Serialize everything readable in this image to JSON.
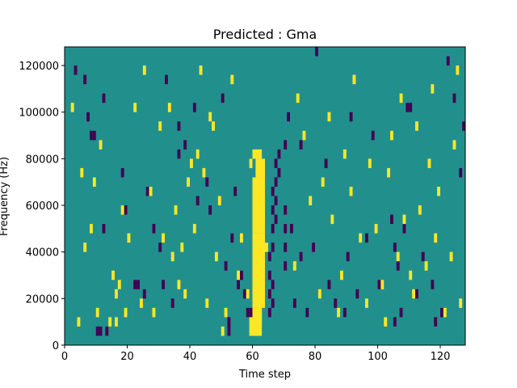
{
  "chart_data": {
    "type": "heatmap",
    "title": "Predicted : Gma",
    "xlabel": "Time step",
    "ylabel": "Frequency (Hz)",
    "xlim": [
      0,
      128
    ],
    "ylim": [
      0,
      128000
    ],
    "grid": false,
    "x_ticks": [
      0,
      20,
      40,
      60,
      80,
      100,
      120
    ],
    "y_ticks": [
      0,
      20000,
      40000,
      60000,
      80000,
      100000,
      120000
    ],
    "n_time_steps": 128,
    "n_freq_bins": 32,
    "freq_bin_hz": 4000,
    "colors": {
      "background": "#21908d",
      "low": "#440154",
      "high": "#fde725"
    },
    "cells_low": [
      [
        3,
        29
      ],
      [
        6,
        28
      ],
      [
        7,
        24
      ],
      [
        8,
        22
      ],
      [
        9,
        22
      ],
      [
        10,
        1
      ],
      [
        11,
        1
      ],
      [
        12,
        12
      ],
      [
        18,
        18
      ],
      [
        12,
        26
      ],
      [
        13,
        1
      ],
      [
        19,
        14
      ],
      [
        22,
        6
      ],
      [
        23,
        6
      ],
      [
        25,
        5
      ],
      [
        26,
        16
      ],
      [
        28,
        12
      ],
      [
        30,
        10
      ],
      [
        31,
        6
      ],
      [
        32,
        28
      ],
      [
        34,
        4
      ],
      [
        36,
        20
      ],
      [
        36,
        23
      ],
      [
        38,
        21
      ],
      [
        41,
        25
      ],
      [
        42,
        15
      ],
      [
        45,
        17
      ],
      [
        46,
        14
      ],
      [
        50,
        26
      ],
      [
        51,
        8
      ],
      [
        52,
        1
      ],
      [
        52,
        2
      ],
      [
        53,
        11
      ],
      [
        54,
        16
      ],
      [
        55,
        6
      ],
      [
        56,
        7
      ],
      [
        57,
        5
      ],
      [
        58,
        3
      ],
      [
        59,
        3
      ],
      [
        65,
        3
      ],
      [
        65,
        5
      ],
      [
        65,
        7
      ],
      [
        65,
        9
      ],
      [
        66,
        4
      ],
      [
        66,
        6
      ],
      [
        66,
        10
      ],
      [
        66,
        12
      ],
      [
        66,
        14
      ],
      [
        66,
        16
      ],
      [
        67,
        13
      ],
      [
        67,
        15
      ],
      [
        67,
        17
      ],
      [
        67,
        19
      ],
      [
        68,
        18
      ],
      [
        68,
        20
      ],
      [
        70,
        8
      ],
      [
        70,
        10
      ],
      [
        70,
        12
      ],
      [
        70,
        14
      ],
      [
        70,
        21
      ],
      [
        71,
        24
      ],
      [
        72,
        12
      ],
      [
        73,
        4
      ],
      [
        75,
        9
      ],
      [
        75,
        21
      ],
      [
        77,
        3
      ],
      [
        79,
        10
      ],
      [
        80,
        31
      ],
      [
        83,
        19
      ],
      [
        84,
        6
      ],
      [
        86,
        4
      ],
      [
        89,
        3
      ],
      [
        90,
        9
      ],
      [
        91,
        24
      ],
      [
        93,
        5
      ],
      [
        96,
        11
      ],
      [
        98,
        22
      ],
      [
        100,
        6
      ],
      [
        104,
        13
      ],
      [
        105,
        2
      ],
      [
        105,
        10
      ],
      [
        106,
        8
      ],
      [
        107,
        3
      ],
      [
        108,
        12
      ],
      [
        109,
        25
      ],
      [
        110,
        25
      ],
      [
        112,
        5
      ],
      [
        114,
        9
      ],
      [
        117,
        6
      ],
      [
        118,
        2
      ],
      [
        120,
        3
      ],
      [
        122,
        30
      ],
      [
        124,
        26
      ],
      [
        126,
        18
      ],
      [
        127,
        23
      ]
    ],
    "cells_high": [
      [
        2,
        25
      ],
      [
        4,
        2
      ],
      [
        5,
        18
      ],
      [
        6,
        10
      ],
      [
        8,
        12
      ],
      [
        9,
        17
      ],
      [
        10,
        3
      ],
      [
        11,
        21
      ],
      [
        14,
        2
      ],
      [
        15,
        7
      ],
      [
        16,
        2
      ],
      [
        16,
        5
      ],
      [
        17,
        6
      ],
      [
        18,
        14
      ],
      [
        19,
        3
      ],
      [
        20,
        11
      ],
      [
        22,
        25
      ],
      [
        24,
        4
      ],
      [
        25,
        29
      ],
      [
        27,
        16
      ],
      [
        28,
        3
      ],
      [
        30,
        23
      ],
      [
        31,
        11
      ],
      [
        33,
        25
      ],
      [
        34,
        9
      ],
      [
        35,
        14
      ],
      [
        36,
        6
      ],
      [
        37,
        10
      ],
      [
        38,
        5
      ],
      [
        39,
        17
      ],
      [
        40,
        19
      ],
      [
        41,
        12
      ],
      [
        42,
        20
      ],
      [
        43,
        29
      ],
      [
        44,
        18
      ],
      [
        45,
        4
      ],
      [
        46,
        24
      ],
      [
        47,
        23
      ],
      [
        48,
        9
      ],
      [
        49,
        15
      ],
      [
        50,
        1
      ],
      [
        51,
        3
      ],
      [
        53,
        28
      ],
      [
        55,
        7
      ],
      [
        56,
        11
      ],
      [
        58,
        5
      ],
      [
        59,
        19
      ],
      [
        60,
        13
      ],
      [
        61,
        8
      ],
      [
        62,
        12
      ],
      [
        63,
        6
      ],
      [
        64,
        10
      ],
      [
        73,
        8
      ],
      [
        74,
        26
      ],
      [
        76,
        22
      ],
      [
        78,
        15
      ],
      [
        81,
        5
      ],
      [
        82,
        17
      ],
      [
        84,
        24
      ],
      [
        85,
        13
      ],
      [
        87,
        3
      ],
      [
        88,
        7
      ],
      [
        89,
        20
      ],
      [
        91,
        16
      ],
      [
        92,
        28
      ],
      [
        94,
        11
      ],
      [
        96,
        4
      ],
      [
        97,
        19
      ],
      [
        99,
        12
      ],
      [
        101,
        6
      ],
      [
        102,
        2
      ],
      [
        103,
        18
      ],
      [
        104,
        22
      ],
      [
        106,
        9
      ],
      [
        107,
        26
      ],
      [
        108,
        13
      ],
      [
        110,
        7
      ],
      [
        111,
        5
      ],
      [
        112,
        23
      ],
      [
        113,
        14
      ],
      [
        115,
        8
      ],
      [
        116,
        19
      ],
      [
        117,
        27
      ],
      [
        118,
        11
      ],
      [
        119,
        16
      ],
      [
        121,
        3
      ],
      [
        123,
        9
      ],
      [
        124,
        21
      ],
      [
        125,
        29
      ],
      [
        126,
        4
      ]
    ],
    "blocks_high": [
      [
        60,
        1,
        3,
        3
      ],
      [
        60,
        4,
        4,
        8
      ],
      [
        60,
        12,
        4,
        6
      ],
      [
        61,
        18,
        3,
        2
      ],
      [
        60,
        20,
        3,
        1
      ],
      [
        59,
        1,
        1,
        2
      ],
      [
        62,
        2,
        1,
        3
      ],
      [
        63,
        14,
        1,
        3
      ],
      [
        62,
        17,
        1,
        3
      ]
    ]
  }
}
